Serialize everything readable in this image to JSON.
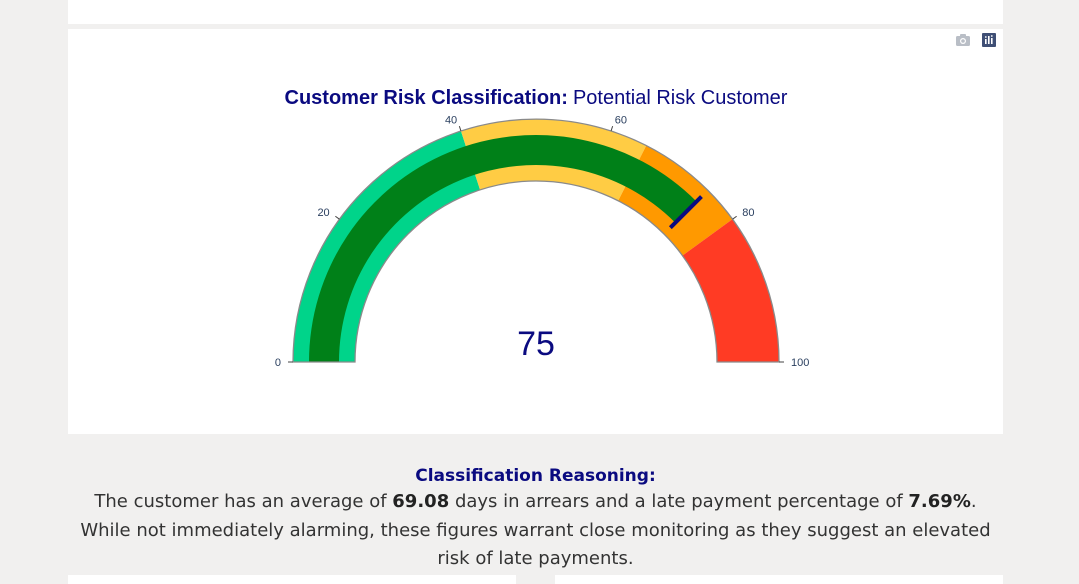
{
  "chart_data": {
    "type": "gauge",
    "title_bold": "Customer Risk Classification:",
    "title_rest": "Potential Risk Customer",
    "value": 75,
    "range": [
      0,
      100
    ],
    "ticks": [
      0,
      20,
      40,
      60,
      80,
      100
    ],
    "steps": [
      {
        "range": [
          0,
          40
        ],
        "color": "#00d48a"
      },
      {
        "range": [
          40,
          65
        ],
        "color": "#ffcc44"
      },
      {
        "range": [
          65,
          80
        ],
        "color": "#ff9900"
      },
      {
        "range": [
          80,
          100
        ],
        "color": "#ff3b24"
      }
    ],
    "bar_color": "#008018",
    "threshold": {
      "value": 75,
      "color": "#0a0a80"
    }
  },
  "modebar": {
    "camera_icon": "camera-icon",
    "plotly_icon": "plotly-logo-icon"
  },
  "reasoning": {
    "heading": "Classification Reasoning:",
    "text_1": "The customer has an average of ",
    "days_value": "69.08",
    "text_2": " days in arrears and a late payment percentage of ",
    "late_pct": "7.69%",
    "text_3": ". While not immediately alarming, these figures warrant close monitoring as they suggest an elevated risk of late payments."
  }
}
